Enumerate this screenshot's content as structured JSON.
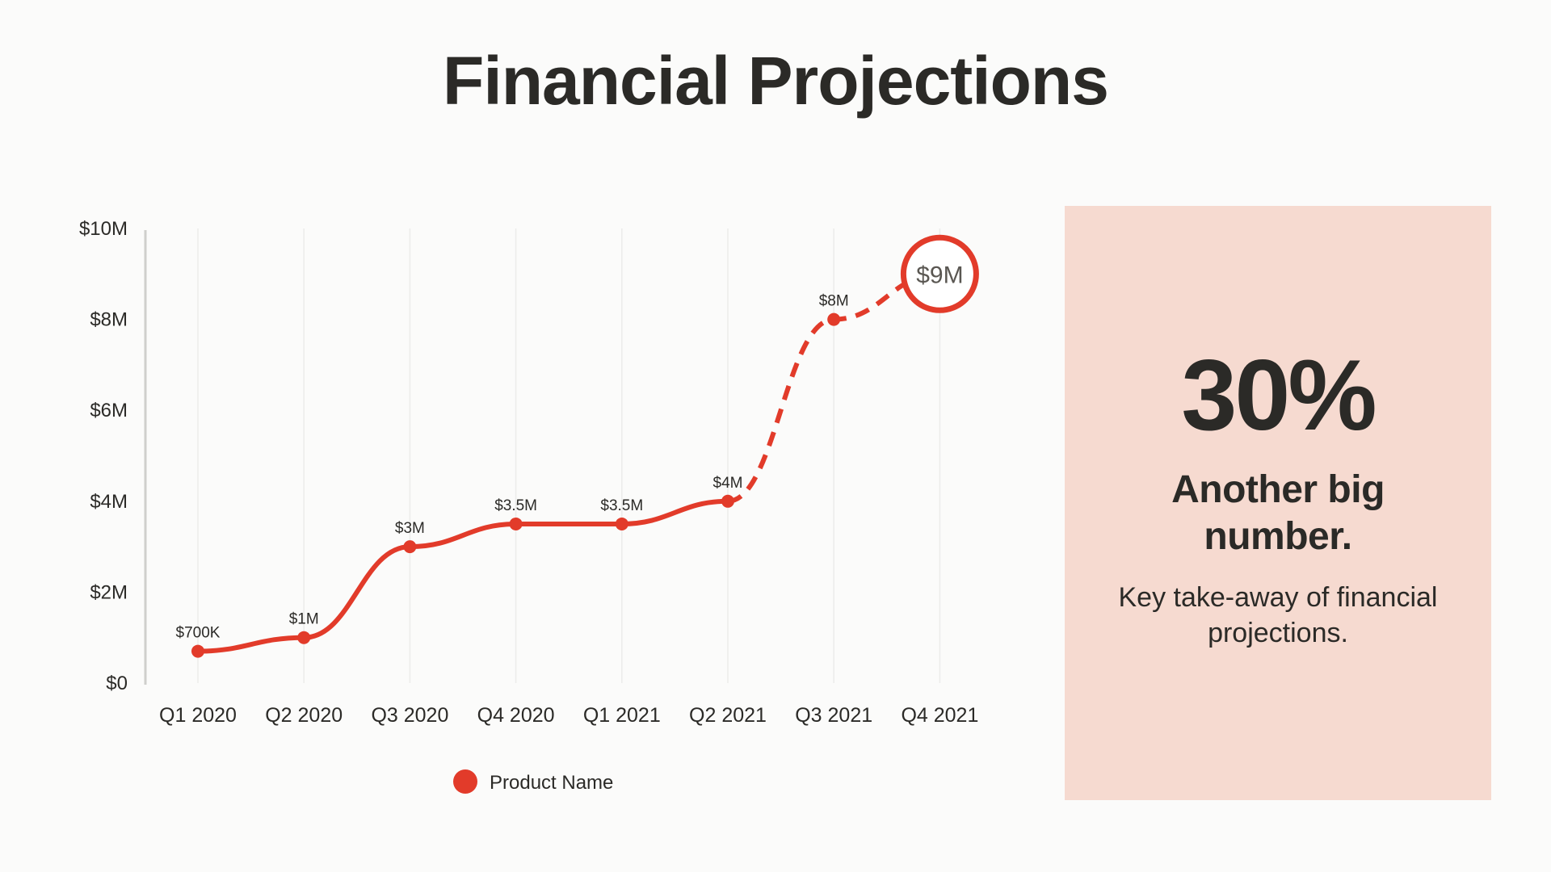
{
  "page": {
    "title": "Financial Projections"
  },
  "chart_data": {
    "type": "line",
    "categories": [
      "Q1 2020",
      "Q2 2020",
      "Q3 2020",
      "Q4 2020",
      "Q1 2021",
      "Q2 2021",
      "Q3 2021",
      "Q4 2021"
    ],
    "series": [
      {
        "name": "Product Name",
        "values": [
          0.7,
          1,
          3,
          3.5,
          3.5,
          4,
          8,
          9
        ],
        "value_labels": [
          "$700K",
          "$1M",
          "$3M",
          "$3.5M",
          "$3.5M",
          "$4M",
          "$8M",
          "$9M"
        ],
        "actual_through_index": 5,
        "projected_style": "dashed",
        "highlight_index": 7
      }
    ],
    "y_unit": "millions USD",
    "ylim": [
      0,
      10
    ],
    "y_ticks": [
      0,
      2,
      4,
      6,
      8,
      10
    ],
    "y_tick_labels": [
      "$0",
      "$2M",
      "$4M",
      "$6M",
      "$8M",
      "$10M"
    ],
    "grid": "vertical",
    "legend_position": "bottom",
    "line_color": "#e23b2a"
  },
  "callout": {
    "big_number": "30%",
    "subhead": "Another big number.",
    "description": "Key take-away of financial projections.",
    "background": "#f6dad0"
  }
}
